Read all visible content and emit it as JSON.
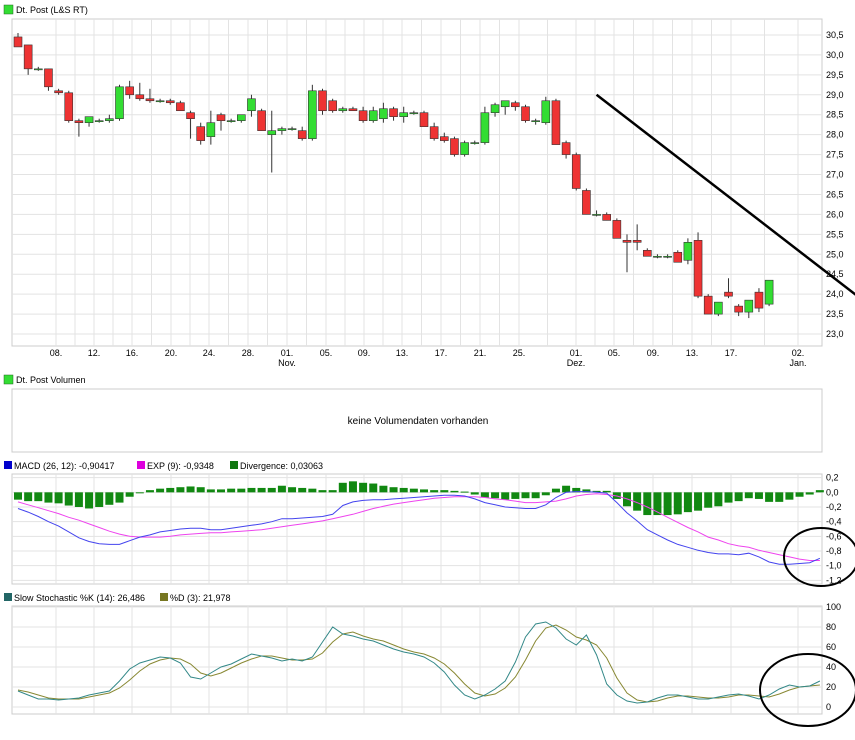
{
  "chart_data": [
    {
      "type": "candlestick",
      "title": "Dt. Post (L&S RT)",
      "ylim": [
        22.7,
        30.9
      ],
      "yticks": [
        "23,0",
        "23,5",
        "24,0",
        "24,5",
        "25,0",
        "25,5",
        "26,0",
        "26,5",
        "27,0",
        "27,5",
        "28,0",
        "28,5",
        "29,0",
        "29,5",
        "30,0",
        "30,5"
      ],
      "xticks": [
        "08.",
        "12.",
        "16.",
        "20.",
        "24.",
        "28.",
        "01.",
        "05.",
        "09.",
        "13.",
        "17.",
        "21.",
        "25.",
        "01.",
        "05.",
        "09.",
        "13.",
        "17.",
        "02."
      ],
      "month_labels": [
        {
          "label": "Nov.",
          "tick": 6
        },
        {
          "label": "Dez.",
          "tick": 13
        },
        {
          "label": "Jan.",
          "tick": 18
        }
      ],
      "up_color": "#33dd33",
      "down_color": "#ee3333",
      "candles": [
        {
          "o": 30.45,
          "h": 30.55,
          "l": 30.25,
          "c": 30.2
        },
        {
          "o": 30.25,
          "h": 30.25,
          "l": 29.5,
          "c": 29.65
        },
        {
          "o": 29.65,
          "h": 29.7,
          "l": 29.6,
          "c": 29.65
        },
        {
          "o": 29.65,
          "h": 29.65,
          "l": 29.1,
          "c": 29.2
        },
        {
          "o": 29.1,
          "h": 29.15,
          "l": 29.0,
          "c": 29.05
        },
        {
          "o": 29.05,
          "h": 29.1,
          "l": 28.3,
          "c": 28.35
        },
        {
          "o": 28.35,
          "h": 28.4,
          "l": 27.95,
          "c": 28.3
        },
        {
          "o": 28.3,
          "h": 28.45,
          "l": 28.2,
          "c": 28.45
        },
        {
          "o": 28.35,
          "h": 28.4,
          "l": 28.3,
          "c": 28.35
        },
        {
          "o": 28.35,
          "h": 28.5,
          "l": 28.3,
          "c": 28.4
        },
        {
          "o": 28.4,
          "h": 29.25,
          "l": 28.35,
          "c": 29.2
        },
        {
          "o": 29.2,
          "h": 29.35,
          "l": 28.9,
          "c": 29.0
        },
        {
          "o": 29.0,
          "h": 29.3,
          "l": 28.85,
          "c": 28.9
        },
        {
          "o": 28.9,
          "h": 29.15,
          "l": 28.8,
          "c": 28.85
        },
        {
          "o": 28.85,
          "h": 28.9,
          "l": 28.8,
          "c": 28.85
        },
        {
          "o": 28.85,
          "h": 28.9,
          "l": 28.75,
          "c": 28.8
        },
        {
          "o": 28.8,
          "h": 28.85,
          "l": 28.6,
          "c": 28.6
        },
        {
          "o": 28.55,
          "h": 28.6,
          "l": 27.9,
          "c": 28.4
        },
        {
          "o": 28.2,
          "h": 28.3,
          "l": 27.75,
          "c": 27.85
        },
        {
          "o": 27.95,
          "h": 28.6,
          "l": 27.75,
          "c": 28.3
        },
        {
          "o": 28.5,
          "h": 28.55,
          "l": 28.1,
          "c": 28.35
        },
        {
          "o": 28.35,
          "h": 28.4,
          "l": 28.3,
          "c": 28.35
        },
        {
          "o": 28.35,
          "h": 28.5,
          "l": 28.3,
          "c": 28.5
        },
        {
          "o": 28.6,
          "h": 29.0,
          "l": 28.45,
          "c": 28.9
        },
        {
          "o": 28.6,
          "h": 28.65,
          "l": 28.1,
          "c": 28.1
        },
        {
          "o": 28.0,
          "h": 28.6,
          "l": 27.05,
          "c": 28.1
        },
        {
          "o": 28.1,
          "h": 28.2,
          "l": 28.0,
          "c": 28.15
        },
        {
          "o": 28.15,
          "h": 28.2,
          "l": 28.1,
          "c": 28.15
        },
        {
          "o": 28.1,
          "h": 28.2,
          "l": 27.85,
          "c": 27.9
        },
        {
          "o": 27.9,
          "h": 29.25,
          "l": 27.85,
          "c": 29.1
        },
        {
          "o": 29.1,
          "h": 29.15,
          "l": 28.5,
          "c": 28.6
        },
        {
          "o": 28.85,
          "h": 28.9,
          "l": 28.55,
          "c": 28.6
        },
        {
          "o": 28.6,
          "h": 28.7,
          "l": 28.55,
          "c": 28.65
        },
        {
          "o": 28.65,
          "h": 28.7,
          "l": 28.6,
          "c": 28.6
        },
        {
          "o": 28.6,
          "h": 28.7,
          "l": 28.3,
          "c": 28.35
        },
        {
          "o": 28.35,
          "h": 28.7,
          "l": 28.3,
          "c": 28.6
        },
        {
          "o": 28.4,
          "h": 28.8,
          "l": 28.3,
          "c": 28.65
        },
        {
          "o": 28.65,
          "h": 28.7,
          "l": 28.35,
          "c": 28.45
        },
        {
          "o": 28.45,
          "h": 28.7,
          "l": 28.3,
          "c": 28.55
        },
        {
          "o": 28.55,
          "h": 28.6,
          "l": 28.5,
          "c": 28.55
        },
        {
          "o": 28.55,
          "h": 28.6,
          "l": 28.2,
          "c": 28.2
        },
        {
          "o": 28.2,
          "h": 28.3,
          "l": 27.85,
          "c": 27.9
        },
        {
          "o": 27.95,
          "h": 28.05,
          "l": 27.8,
          "c": 27.85
        },
        {
          "o": 27.9,
          "h": 27.95,
          "l": 27.45,
          "c": 27.5
        },
        {
          "o": 27.5,
          "h": 27.85,
          "l": 27.45,
          "c": 27.8
        },
        {
          "o": 27.8,
          "h": 27.85,
          "l": 27.75,
          "c": 27.8
        },
        {
          "o": 27.8,
          "h": 28.7,
          "l": 27.75,
          "c": 28.55
        },
        {
          "o": 28.55,
          "h": 28.8,
          "l": 28.45,
          "c": 28.75
        },
        {
          "o": 28.7,
          "h": 28.85,
          "l": 28.5,
          "c": 28.85
        },
        {
          "o": 28.8,
          "h": 28.85,
          "l": 28.6,
          "c": 28.7
        },
        {
          "o": 28.7,
          "h": 28.75,
          "l": 28.3,
          "c": 28.35
        },
        {
          "o": 28.35,
          "h": 28.4,
          "l": 28.25,
          "c": 28.35
        },
        {
          "o": 28.3,
          "h": 28.95,
          "l": 28.25,
          "c": 28.85
        },
        {
          "o": 28.85,
          "h": 28.9,
          "l": 27.75,
          "c": 27.75
        },
        {
          "o": 27.8,
          "h": 27.85,
          "l": 27.4,
          "c": 27.5
        },
        {
          "o": 27.5,
          "h": 27.55,
          "l": 26.6,
          "c": 26.65
        },
        {
          "o": 26.6,
          "h": 26.65,
          "l": 26.0,
          "c": 26.0
        },
        {
          "o": 26.0,
          "h": 26.1,
          "l": 25.95,
          "c": 26.0
        },
        {
          "o": 26.0,
          "h": 26.05,
          "l": 25.85,
          "c": 25.85
        },
        {
          "o": 25.85,
          "h": 25.9,
          "l": 25.4,
          "c": 25.4
        },
        {
          "o": 25.35,
          "h": 25.5,
          "l": 24.55,
          "c": 25.3
        },
        {
          "o": 25.35,
          "h": 25.75,
          "l": 25.1,
          "c": 25.3
        },
        {
          "o": 25.1,
          "h": 25.15,
          "l": 24.95,
          "c": 24.95
        },
        {
          "o": 24.95,
          "h": 25.0,
          "l": 24.9,
          "c": 24.95
        },
        {
          "o": 24.95,
          "h": 25.0,
          "l": 24.9,
          "c": 24.95
        },
        {
          "o": 25.05,
          "h": 25.1,
          "l": 24.8,
          "c": 24.8
        },
        {
          "o": 24.85,
          "h": 25.4,
          "l": 24.75,
          "c": 25.3
        },
        {
          "o": 25.35,
          "h": 25.55,
          "l": 23.9,
          "c": 23.95
        },
        {
          "o": 23.95,
          "h": 24.0,
          "l": 23.5,
          "c": 23.5
        },
        {
          "o": 23.5,
          "h": 23.8,
          "l": 23.45,
          "c": 23.8
        },
        {
          "o": 24.05,
          "h": 24.4,
          "l": 23.9,
          "c": 23.95
        },
        {
          "o": 23.7,
          "h": 23.75,
          "l": 23.45,
          "c": 23.55
        },
        {
          "o": 23.55,
          "h": 23.8,
          "l": 23.4,
          "c": 23.85
        },
        {
          "o": 24.05,
          "h": 24.15,
          "l": 23.55,
          "c": 23.65
        },
        {
          "o": 23.75,
          "h": 24.35,
          "l": 23.7,
          "c": 24.35
        }
      ],
      "trendline": {
        "start": {
          "index": 57,
          "price": 29.0
        },
        "end": {
          "index": 85,
          "price": 23.5
        }
      }
    },
    {
      "type": "bar",
      "title": "Dt. Post Volumen",
      "note": "keine Volumendaten vorhanden"
    },
    {
      "type": "line",
      "ylim": [
        -1.25,
        0.25
      ],
      "yticks": [
        "-1,2",
        "-1,0",
        "-0,8",
        "-0,6",
        "-0,4",
        "-0,2",
        "0,0",
        "0,2"
      ],
      "legend": [
        {
          "text": "MACD (26, 12): -0,90417",
          "color": "#0000cc"
        },
        {
          "text": "EXP (9): -0,9348",
          "color": "#dd00dd"
        },
        {
          "text": "Divergence: 0,03063",
          "color": "#117711"
        }
      ],
      "series": [
        {
          "name": "MACD",
          "color": "#4444ee",
          "values": [
            -0.22,
            -0.27,
            -0.33,
            -0.4,
            -0.46,
            -0.54,
            -0.62,
            -0.67,
            -0.7,
            -0.71,
            -0.71,
            -0.66,
            -0.61,
            -0.58,
            -0.54,
            -0.52,
            -0.5,
            -0.49,
            -0.49,
            -0.51,
            -0.51,
            -0.49,
            -0.47,
            -0.45,
            -0.43,
            -0.4,
            -0.36,
            -0.36,
            -0.35,
            -0.34,
            -0.33,
            -0.3,
            -0.18,
            -0.13,
            -0.11,
            -0.1,
            -0.1,
            -0.09,
            -0.08,
            -0.07,
            -0.06,
            -0.05,
            -0.04,
            -0.04,
            -0.05,
            -0.09,
            -0.14,
            -0.17,
            -0.2,
            -0.21,
            -0.22,
            -0.22,
            -0.17,
            -0.07,
            0.0,
            0.01,
            0.01,
            0.0,
            -0.01,
            -0.14,
            -0.28,
            -0.39,
            -0.51,
            -0.58,
            -0.65,
            -0.71,
            -0.75,
            -0.79,
            -0.82,
            -0.84,
            -0.84,
            -0.85,
            -0.83,
            -0.88,
            -0.95,
            -0.98,
            -0.98,
            -0.97,
            -0.96,
            -0.9
          ]
        },
        {
          "name": "EXP",
          "color": "#ee44ee",
          "values": [
            -0.13,
            -0.17,
            -0.21,
            -0.25,
            -0.29,
            -0.34,
            -0.38,
            -0.43,
            -0.48,
            -0.53,
            -0.57,
            -0.6,
            -0.61,
            -0.61,
            -0.61,
            -0.6,
            -0.58,
            -0.57,
            -0.56,
            -0.55,
            -0.55,
            -0.54,
            -0.53,
            -0.52,
            -0.51,
            -0.49,
            -0.47,
            -0.45,
            -0.43,
            -0.41,
            -0.39,
            -0.36,
            -0.33,
            -0.3,
            -0.26,
            -0.22,
            -0.19,
            -0.16,
            -0.14,
            -0.12,
            -0.1,
            -0.08,
            -0.07,
            -0.06,
            -0.06,
            -0.06,
            -0.07,
            -0.09,
            -0.1,
            -0.12,
            -0.14,
            -0.14,
            -0.13,
            -0.12,
            -0.09,
            -0.05,
            -0.03,
            -0.02,
            -0.03,
            -0.05,
            -0.09,
            -0.14,
            -0.2,
            -0.27,
            -0.34,
            -0.41,
            -0.48,
            -0.54,
            -0.61,
            -0.65,
            -0.7,
            -0.73,
            -0.75,
            -0.79,
            -0.82,
            -0.85,
            -0.88,
            -0.91,
            -0.93,
            -0.93
          ]
        },
        {
          "name": "Divergence",
          "color": "#118811",
          "values": [
            -0.1,
            -0.12,
            -0.12,
            -0.14,
            -0.15,
            -0.18,
            -0.2,
            -0.22,
            -0.2,
            -0.17,
            -0.14,
            -0.06,
            -0.01,
            0.03,
            0.05,
            0.06,
            0.07,
            0.08,
            0.07,
            0.04,
            0.04,
            0.05,
            0.05,
            0.06,
            0.06,
            0.06,
            0.09,
            0.07,
            0.06,
            0.05,
            0.03,
            0.03,
            0.13,
            0.15,
            0.13,
            0.12,
            0.09,
            0.07,
            0.06,
            0.05,
            0.04,
            0.03,
            0.03,
            0.02,
            0.01,
            -0.03,
            -0.07,
            -0.08,
            -0.1,
            -0.09,
            -0.08,
            -0.08,
            -0.04,
            0.05,
            0.09,
            0.06,
            0.04,
            0.02,
            0.02,
            -0.09,
            -0.19,
            -0.25,
            -0.31,
            -0.31,
            -0.31,
            -0.3,
            -0.27,
            -0.25,
            -0.21,
            -0.19,
            -0.14,
            -0.12,
            -0.08,
            -0.09,
            -0.13,
            -0.13,
            -0.1,
            -0.06,
            -0.03,
            0.03
          ]
        }
      ]
    },
    {
      "type": "line",
      "ylim": [
        0,
        100
      ],
      "yticks": [
        "0",
        "20",
        "40",
        "60",
        "80",
        "100"
      ],
      "legend": [
        {
          "text": "Slow Stochastic %K (14): 26,486",
          "color": "#226666"
        },
        {
          "text": "%D (3): 21,978",
          "color": "#777722"
        }
      ],
      "series": [
        {
          "name": "%K",
          "color": "#338888",
          "values": [
            16,
            12,
            8,
            8,
            7,
            8,
            9,
            12,
            14,
            16,
            26,
            38,
            44,
            47,
            50,
            49,
            44,
            30,
            28,
            34,
            40,
            43,
            48,
            53,
            51,
            49,
            46,
            48,
            46,
            50,
            65,
            80,
            73,
            71,
            68,
            66,
            62,
            58,
            55,
            53,
            50,
            44,
            35,
            22,
            12,
            8,
            12,
            18,
            26,
            45,
            70,
            83,
            85,
            79,
            68,
            62,
            72,
            52,
            23,
            12,
            6,
            4,
            5,
            9,
            12,
            12,
            10,
            8,
            8,
            10,
            12,
            13,
            11,
            8,
            12,
            18,
            22,
            20,
            21,
            26
          ]
        },
        {
          "name": "%D",
          "color": "#888833",
          "values": [
            17,
            15,
            12,
            9,
            8,
            8,
            8,
            10,
            12,
            14,
            19,
            27,
            36,
            43,
            47,
            49,
            48,
            43,
            34,
            31,
            34,
            39,
            44,
            48,
            51,
            51,
            49,
            47,
            47,
            48,
            54,
            65,
            73,
            75,
            71,
            68,
            66,
            62,
            58,
            55,
            53,
            49,
            43,
            34,
            23,
            14,
            11,
            13,
            19,
            30,
            47,
            66,
            79,
            82,
            77,
            70,
            67,
            62,
            49,
            29,
            14,
            7,
            5,
            6,
            9,
            11,
            11,
            10,
            9,
            9,
            10,
            12,
            12,
            11,
            10,
            13,
            17,
            20,
            21,
            22
          ]
        }
      ],
      "annotation": "ellipse"
    }
  ]
}
